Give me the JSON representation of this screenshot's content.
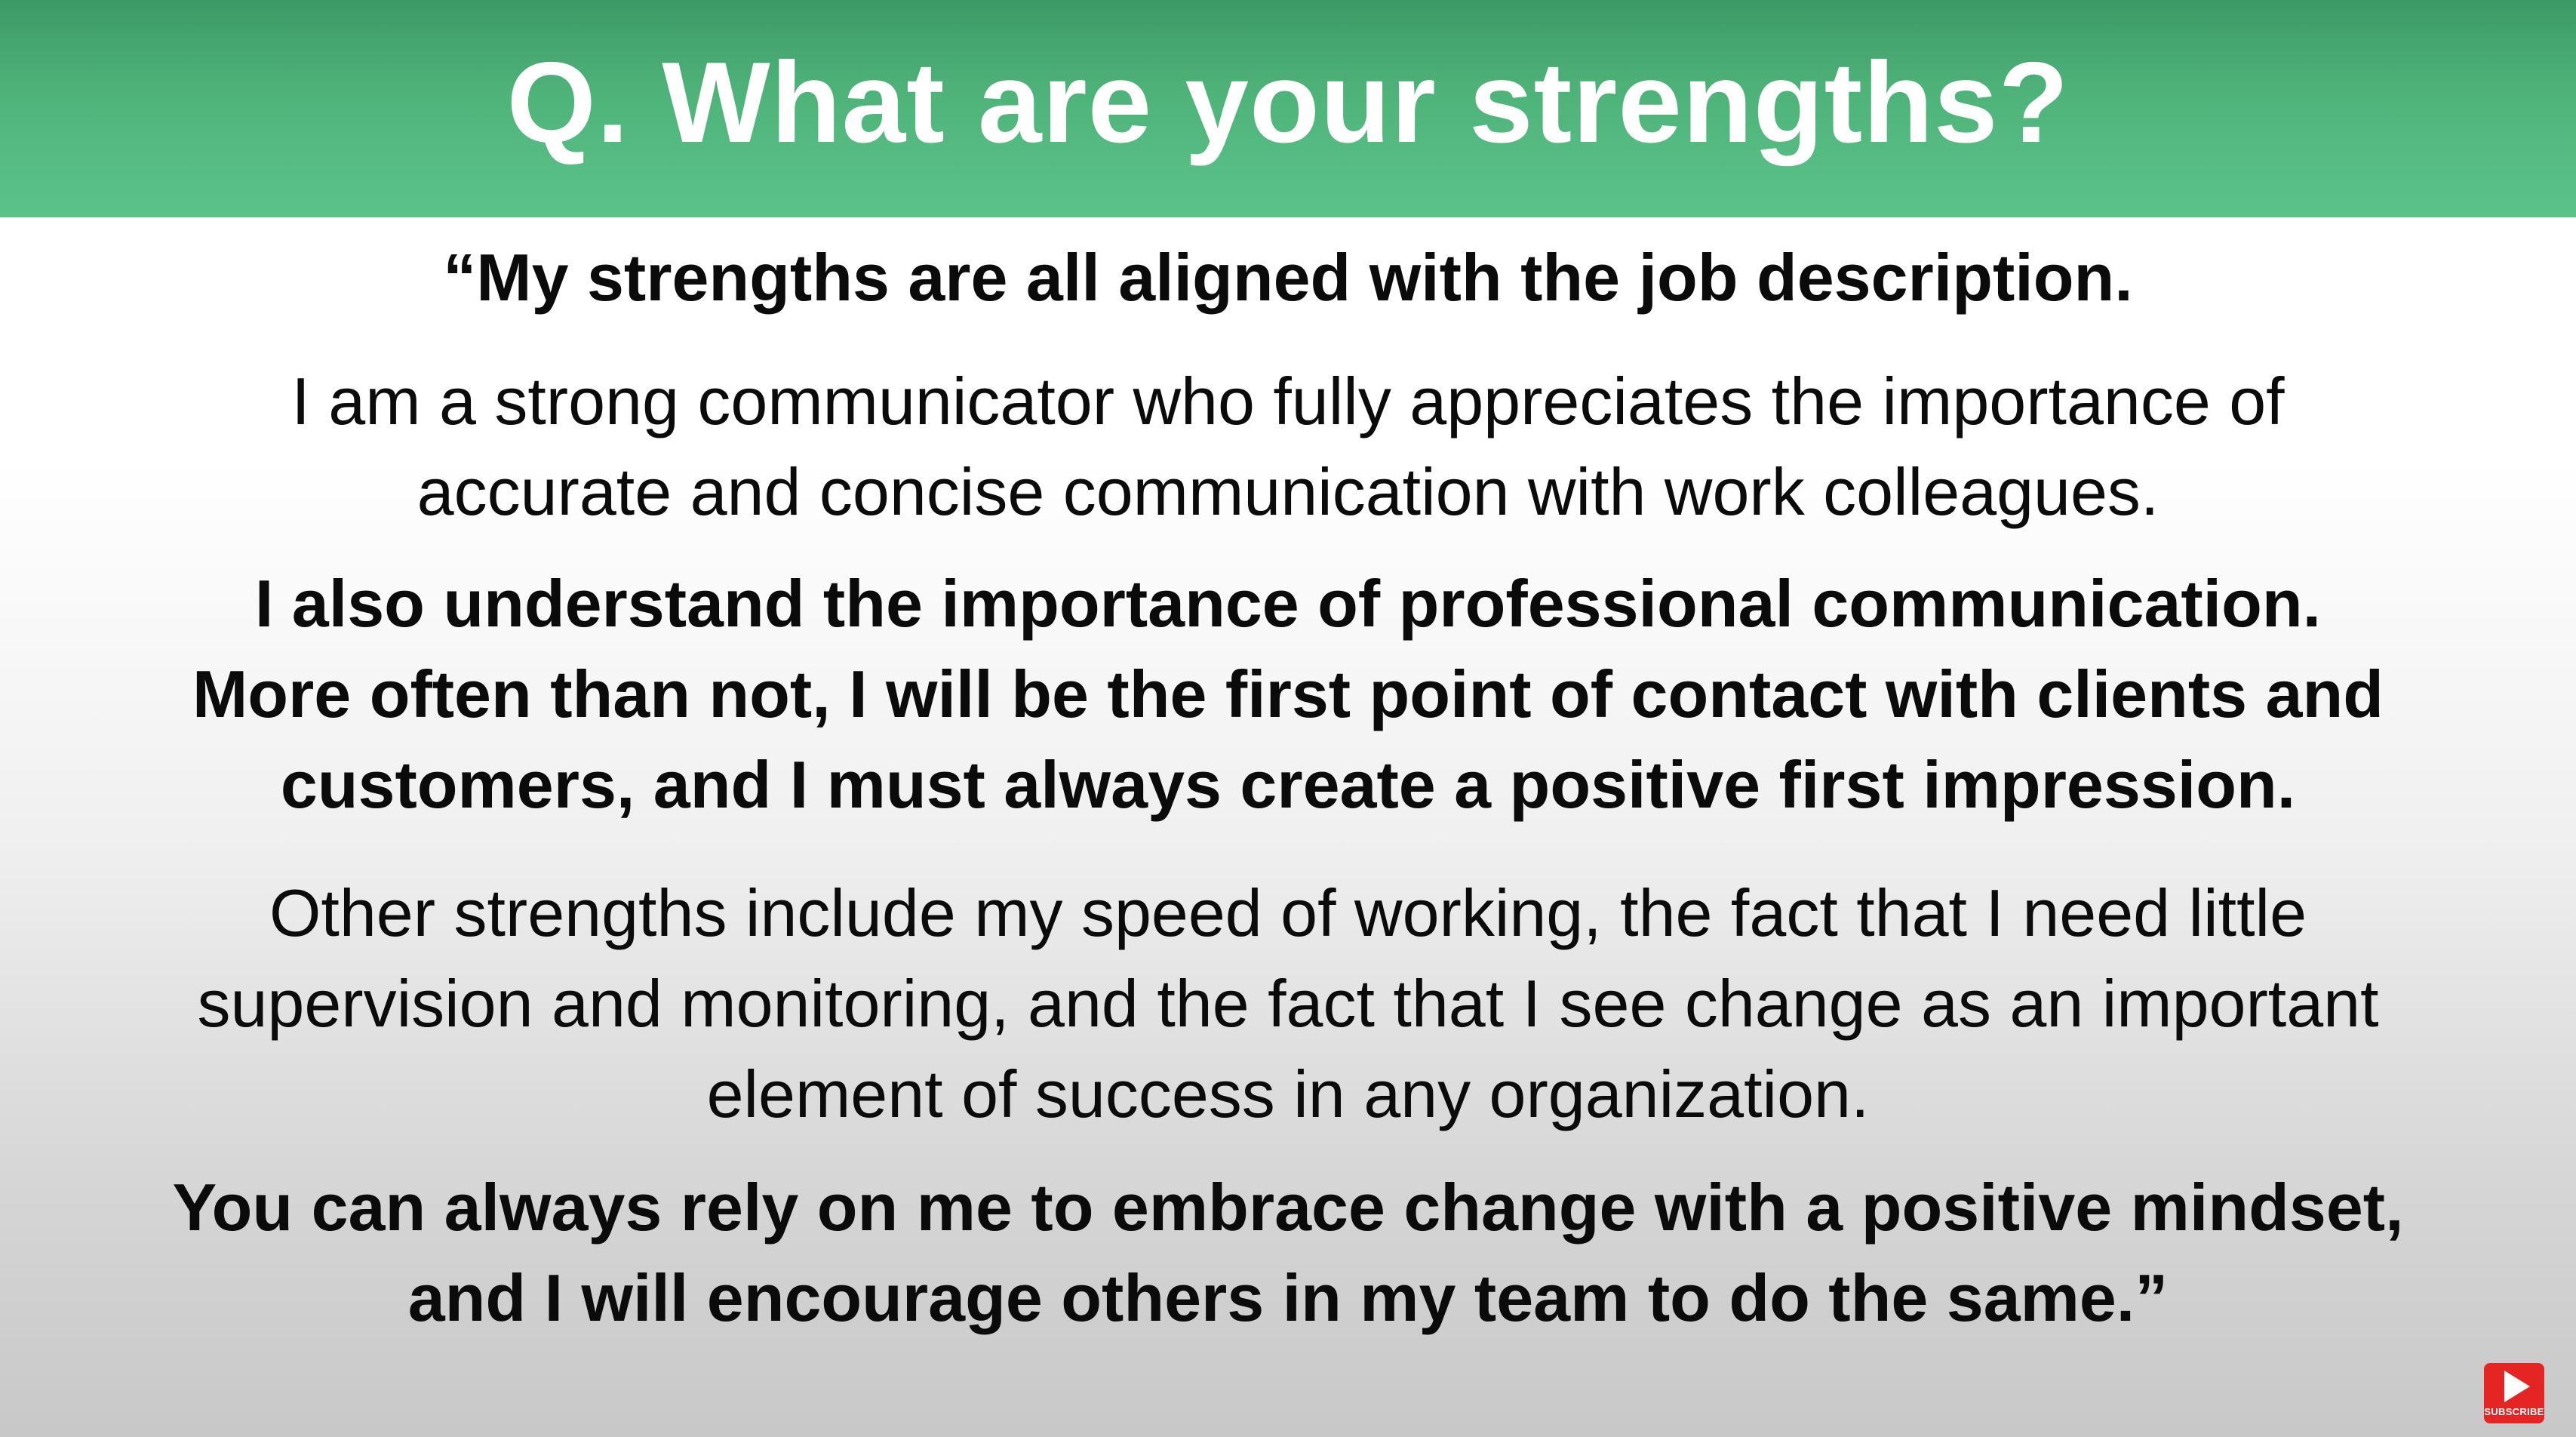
{
  "header": {
    "title": "Q. What are your strengths?"
  },
  "answer": {
    "paragraphs": [
      {
        "style": "bold",
        "lines": [
          "“My strengths are all aligned with the job description."
        ]
      },
      {
        "style": "regular",
        "lines": [
          "I am a strong communicator who fully appreciates the importance of",
          "accurate and concise communication with work colleagues."
        ]
      },
      {
        "style": "bold",
        "lines": [
          "I also understand the importance of professional communication.",
          "More often than not, I will be the first point of contact with clients and",
          "customers, and I must always create a positive first impression."
        ]
      },
      {
        "style": "regular",
        "lines": [
          "Other strengths include my speed of working, the fact that I need little",
          "supervision and monitoring, and the fact that I see change as an important",
          "element of success in any organization."
        ]
      },
      {
        "style": "bold",
        "lines": [
          "You can always rely on me to embrace change with a positive mindset,",
          "and I will encourage others in my team to do the same.”"
        ]
      }
    ]
  },
  "subscribe": {
    "label": "SUBSCRIBE",
    "icon": "play-icon",
    "color": "#e52424"
  },
  "colors": {
    "header_green": "#4fb47a",
    "header_text": "#ffffff",
    "body_text": "#0b0b0b"
  }
}
